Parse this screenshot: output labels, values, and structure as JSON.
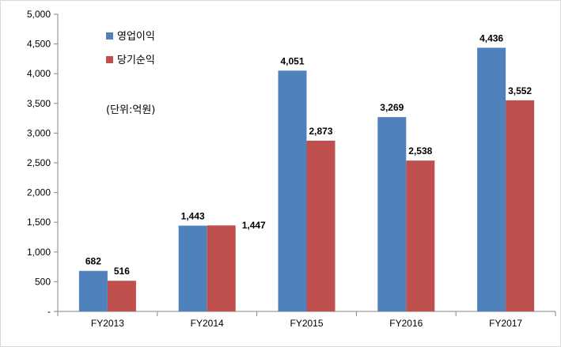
{
  "chart_data": {
    "type": "bar",
    "categories": [
      "FY2013",
      "FY2014",
      "FY2015",
      "FY2016",
      "FY2017"
    ],
    "series": [
      {
        "name": "영업이익",
        "values": [
          682,
          1443,
          4051,
          3269,
          4436
        ],
        "value_labels": [
          "682",
          "1,443",
          "4,051",
          "3,269",
          "4,436"
        ],
        "color": "#4f81bd"
      },
      {
        "name": "당기순익",
        "values": [
          516,
          1447,
          2873,
          2538,
          3552
        ],
        "value_labels": [
          "516",
          "1,447",
          "2,873",
          "2,538",
          "3,552"
        ],
        "color": "#c0504d"
      }
    ],
    "ylim": [
      0,
      5000
    ],
    "yticks": [
      0,
      500,
      1000,
      1500,
      2000,
      2500,
      3000,
      3500,
      4000,
      4500,
      5000
    ],
    "ytick_labels": [
      "-",
      "500",
      "1,000",
      "1,500",
      "2,000",
      "2,500",
      "3,000",
      "3,500",
      "4,000",
      "4,500",
      "5,000"
    ],
    "unit_note": "(단위:억원)",
    "legend_position": "top-left inside plot",
    "grid": false
  }
}
